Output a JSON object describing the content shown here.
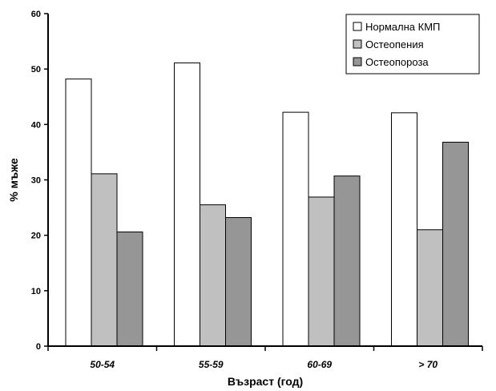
{
  "chart_data": {
    "type": "bar",
    "title": "",
    "xlabel": "Възраст (год)",
    "ylabel": "% мъже",
    "categories": [
      "50-54",
      "55-59",
      "60-69",
      "> 70"
    ],
    "ylim": [
      0,
      60
    ],
    "yticks": [
      0,
      10,
      20,
      30,
      40,
      50,
      60
    ],
    "grid": false,
    "legend_position": "top-right",
    "series": [
      {
        "name": "Нормална КМП",
        "values": [
          48.2,
          51.1,
          42.2,
          42.1
        ],
        "color": "#ffffff"
      },
      {
        "name": "Остеопения",
        "values": [
          31.1,
          25.5,
          26.9,
          21.0
        ],
        "color": "#c0c0c0"
      },
      {
        "name": "Остеопороза",
        "values": [
          20.6,
          23.2,
          30.7,
          36.8
        ],
        "color": "#969696"
      }
    ]
  }
}
